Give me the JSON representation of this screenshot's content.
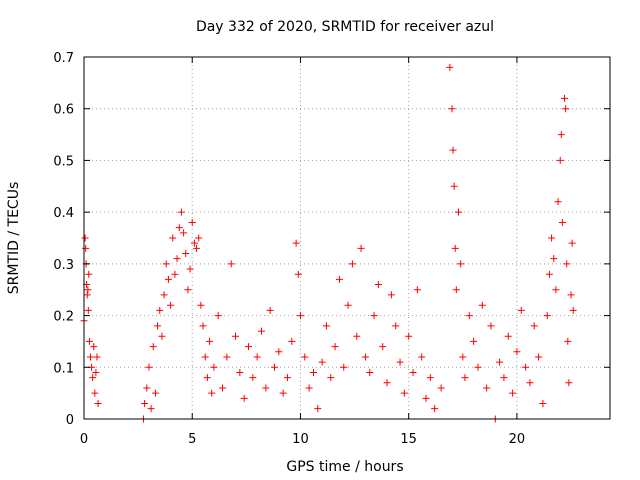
{
  "chart_data": {
    "type": "scatter",
    "title": "Day 332 of 2020, SRMTID for receiver azul",
    "xlabel": "GPS time / hours",
    "ylabel": "SRMTID / TECUs",
    "xlim": [
      0,
      24.3
    ],
    "ylim": [
      0,
      0.7
    ],
    "xticks": [
      0,
      5,
      10,
      15,
      20
    ],
    "xtick_labels": [
      "0",
      "5",
      "10",
      "15",
      "20"
    ],
    "yticks": [
      0,
      0.1,
      0.2,
      0.3,
      0.4,
      0.5,
      0.6,
      0.7
    ],
    "ytick_labels": [
      "0",
      "0.1",
      "0.2",
      "0.3",
      "0.4",
      "0.5",
      "0.6",
      "0.7"
    ],
    "grid": true,
    "marker": "+",
    "color": "#ff0000",
    "series": [
      {
        "name": "SRMTID",
        "points": [
          [
            0.0,
            0.19
          ],
          [
            0.05,
            0.35
          ],
          [
            0.08,
            0.33
          ],
          [
            0.1,
            0.3
          ],
          [
            0.12,
            0.26
          ],
          [
            0.15,
            0.24
          ],
          [
            0.18,
            0.25
          ],
          [
            0.2,
            0.21
          ],
          [
            0.22,
            0.28
          ],
          [
            0.25,
            0.15
          ],
          [
            0.3,
            0.12
          ],
          [
            0.35,
            0.1
          ],
          [
            0.4,
            0.08
          ],
          [
            0.45,
            0.14
          ],
          [
            0.5,
            0.05
          ],
          [
            0.55,
            0.09
          ],
          [
            0.6,
            0.12
          ],
          [
            0.65,
            0.03
          ],
          [
            2.75,
            0.0
          ],
          [
            2.8,
            0.03
          ],
          [
            2.9,
            0.06
          ],
          [
            3.0,
            0.1
          ],
          [
            3.1,
            0.02
          ],
          [
            3.2,
            0.14
          ],
          [
            3.3,
            0.05
          ],
          [
            3.4,
            0.18
          ],
          [
            3.5,
            0.21
          ],
          [
            3.6,
            0.16
          ],
          [
            3.7,
            0.24
          ],
          [
            3.8,
            0.3
          ],
          [
            3.9,
            0.27
          ],
          [
            4.0,
            0.22
          ],
          [
            4.1,
            0.35
          ],
          [
            4.2,
            0.28
          ],
          [
            4.3,
            0.31
          ],
          [
            4.4,
            0.37
          ],
          [
            4.5,
            0.4
          ],
          [
            4.6,
            0.36
          ],
          [
            4.7,
            0.32
          ],
          [
            4.8,
            0.25
          ],
          [
            4.9,
            0.29
          ],
          [
            5.0,
            0.38
          ],
          [
            5.1,
            0.34
          ],
          [
            5.2,
            0.33
          ],
          [
            5.3,
            0.35
          ],
          [
            5.4,
            0.22
          ],
          [
            5.5,
            0.18
          ],
          [
            5.6,
            0.12
          ],
          [
            5.7,
            0.08
          ],
          [
            5.8,
            0.15
          ],
          [
            5.9,
            0.05
          ],
          [
            6.0,
            0.1
          ],
          [
            6.2,
            0.2
          ],
          [
            6.4,
            0.06
          ],
          [
            6.6,
            0.12
          ],
          [
            6.8,
            0.3
          ],
          [
            7.0,
            0.16
          ],
          [
            7.2,
            0.09
          ],
          [
            7.4,
            0.04
          ],
          [
            7.6,
            0.14
          ],
          [
            7.8,
            0.08
          ],
          [
            8.0,
            0.12
          ],
          [
            8.2,
            0.17
          ],
          [
            8.4,
            0.06
          ],
          [
            8.6,
            0.21
          ],
          [
            8.8,
            0.1
          ],
          [
            9.0,
            0.13
          ],
          [
            9.2,
            0.05
          ],
          [
            9.4,
            0.08
          ],
          [
            9.6,
            0.15
          ],
          [
            9.8,
            0.34
          ],
          [
            9.9,
            0.28
          ],
          [
            10.0,
            0.2
          ],
          [
            10.2,
            0.12
          ],
          [
            10.4,
            0.06
          ],
          [
            10.6,
            0.09
          ],
          [
            10.8,
            0.02
          ],
          [
            11.0,
            0.11
          ],
          [
            11.2,
            0.18
          ],
          [
            11.4,
            0.08
          ],
          [
            11.6,
            0.14
          ],
          [
            11.8,
            0.27
          ],
          [
            12.0,
            0.1
          ],
          [
            12.2,
            0.22
          ],
          [
            12.4,
            0.3
          ],
          [
            12.6,
            0.16
          ],
          [
            12.8,
            0.33
          ],
          [
            13.0,
            0.12
          ],
          [
            13.2,
            0.09
          ],
          [
            13.4,
            0.2
          ],
          [
            13.6,
            0.26
          ],
          [
            13.8,
            0.14
          ],
          [
            14.0,
            0.07
          ],
          [
            14.2,
            0.24
          ],
          [
            14.4,
            0.18
          ],
          [
            14.6,
            0.11
          ],
          [
            14.8,
            0.05
          ],
          [
            15.0,
            0.16
          ],
          [
            15.2,
            0.09
          ],
          [
            15.4,
            0.25
          ],
          [
            15.6,
            0.12
          ],
          [
            15.8,
            0.04
          ],
          [
            16.0,
            0.08
          ],
          [
            16.2,
            0.02
          ],
          [
            16.5,
            0.06
          ],
          [
            16.9,
            0.68
          ],
          [
            17.0,
            0.6
          ],
          [
            17.05,
            0.52
          ],
          [
            17.1,
            0.45
          ],
          [
            17.15,
            0.33
          ],
          [
            17.2,
            0.25
          ],
          [
            17.3,
            0.4
          ],
          [
            17.4,
            0.3
          ],
          [
            17.5,
            0.12
          ],
          [
            17.6,
            0.08
          ],
          [
            17.8,
            0.2
          ],
          [
            18.0,
            0.15
          ],
          [
            18.2,
            0.1
          ],
          [
            18.4,
            0.22
          ],
          [
            18.6,
            0.06
          ],
          [
            18.8,
            0.18
          ],
          [
            19.0,
            0.0
          ],
          [
            19.2,
            0.11
          ],
          [
            19.4,
            0.08
          ],
          [
            19.6,
            0.16
          ],
          [
            19.8,
            0.05
          ],
          [
            20.0,
            0.13
          ],
          [
            20.2,
            0.21
          ],
          [
            20.4,
            0.1
          ],
          [
            20.6,
            0.07
          ],
          [
            20.8,
            0.18
          ],
          [
            21.0,
            0.12
          ],
          [
            21.2,
            0.03
          ],
          [
            21.4,
            0.2
          ],
          [
            21.5,
            0.28
          ],
          [
            21.6,
            0.35
          ],
          [
            21.7,
            0.31
          ],
          [
            21.8,
            0.25
          ],
          [
            21.9,
            0.42
          ],
          [
            22.0,
            0.5
          ],
          [
            22.05,
            0.55
          ],
          [
            22.1,
            0.38
          ],
          [
            22.2,
            0.62
          ],
          [
            22.25,
            0.6
          ],
          [
            22.3,
            0.3
          ],
          [
            22.35,
            0.15
          ],
          [
            22.4,
            0.07
          ],
          [
            22.5,
            0.24
          ],
          [
            22.55,
            0.34
          ],
          [
            22.6,
            0.21
          ]
        ]
      }
    ]
  }
}
